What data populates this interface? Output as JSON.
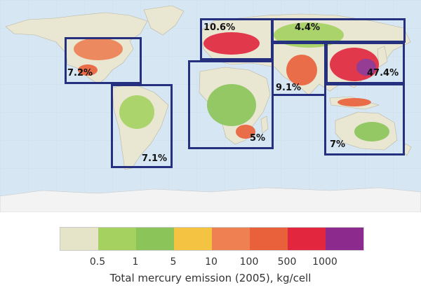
{
  "map": {
    "ocean_color": "#d6e6f2",
    "land_color": "#e9e6d2",
    "antarctica_color": "#f3f3f3",
    "box_color": "#25307f"
  },
  "regions": [
    {
      "id": "north-america",
      "label": "7.2%"
    },
    {
      "id": "south-america",
      "label": "7.1%"
    },
    {
      "id": "europe",
      "label": "10.6%"
    },
    {
      "id": "russia",
      "label": "4.4%"
    },
    {
      "id": "africa",
      "label": "5%"
    },
    {
      "id": "middle-east-south-asia",
      "label": "9.1%"
    },
    {
      "id": "east-asia",
      "label": "47.4%"
    },
    {
      "id": "oceania",
      "label": "7%"
    }
  ],
  "legend": {
    "swatches": [
      "#e6e4c8",
      "#a5d161",
      "#8bc55a",
      "#f5c342",
      "#ee8052",
      "#e9613a",
      "#e1263e",
      "#8c2a8e"
    ],
    "ticks": [
      "0.5",
      "1",
      "5",
      "10",
      "100",
      "500",
      "1000"
    ],
    "caption": "Total mercury emission (2005), kg/cell"
  }
}
